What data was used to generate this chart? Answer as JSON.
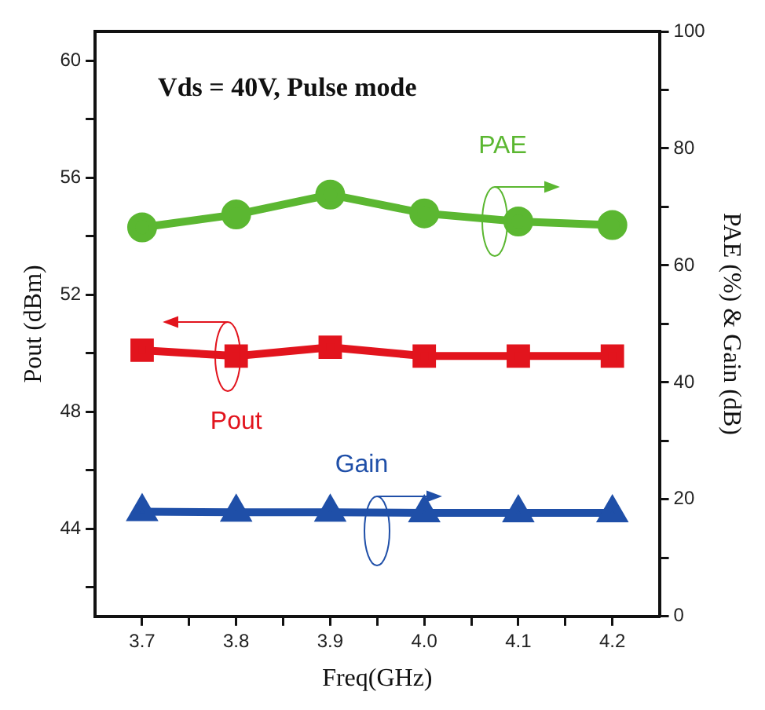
{
  "chart_data": {
    "type": "line",
    "xlabel": "Freq(GHz)",
    "ylabel": "Pout (dBm)",
    "y2label": "PAE (%) & Gain (dB)",
    "annotations": [
      "Vds = 40V, Pulse mode"
    ],
    "x": [
      3.7,
      3.8,
      3.9,
      4.0,
      4.1,
      4.2
    ],
    "xlim": [
      3.65,
      4.25
    ],
    "xticks": [
      3.7,
      {
        "value": 3.75,
        "label": null
      },
      3.8,
      {
        "value": 3.85,
        "label": null
      },
      3.9,
      {
        "value": 3.95,
        "label": null
      },
      {
        "value": 4.0,
        "label": "4.0"
      },
      {
        "value": 4.05,
        "label": null
      },
      4.1,
      {
        "value": 4.15,
        "label": null
      },
      4.2
    ],
    "ylim": [
      41,
      61
    ],
    "yticks": [
      {
        "value": 42,
        "label": null
      },
      44,
      {
        "value": 46,
        "label": null
      },
      48,
      {
        "value": 50,
        "label": null
      },
      52,
      {
        "value": 54,
        "label": null
      },
      56,
      {
        "value": 58,
        "label": null
      },
      60
    ],
    "y2lim": [
      0,
      100
    ],
    "y2ticks": [
      0,
      {
        "value": 10,
        "label": null
      },
      20,
      {
        "value": 30,
        "label": null
      },
      40,
      {
        "value": 50,
        "label": null
      },
      60,
      {
        "value": 70,
        "label": null
      },
      80,
      {
        "value": 90,
        "label": null
      },
      100
    ],
    "series": [
      {
        "name": "PAE",
        "color": "#5bb731",
        "axis": "y2",
        "marker": "circle",
        "values": [
          66.5,
          68.7,
          72.1,
          68.9,
          67.5,
          66.9
        ]
      },
      {
        "name": "Pout",
        "color": "#e2141d",
        "marker": "square",
        "values": [
          50.1,
          49.9,
          50.2,
          49.9,
          49.9,
          49.9
        ]
      },
      {
        "name": "Gain",
        "color": "#1f4fa8",
        "axis": "y2",
        "marker": "triangle",
        "values": [
          17.9,
          17.8,
          17.8,
          17.7,
          17.7,
          17.7
        ]
      }
    ],
    "legend": false
  }
}
